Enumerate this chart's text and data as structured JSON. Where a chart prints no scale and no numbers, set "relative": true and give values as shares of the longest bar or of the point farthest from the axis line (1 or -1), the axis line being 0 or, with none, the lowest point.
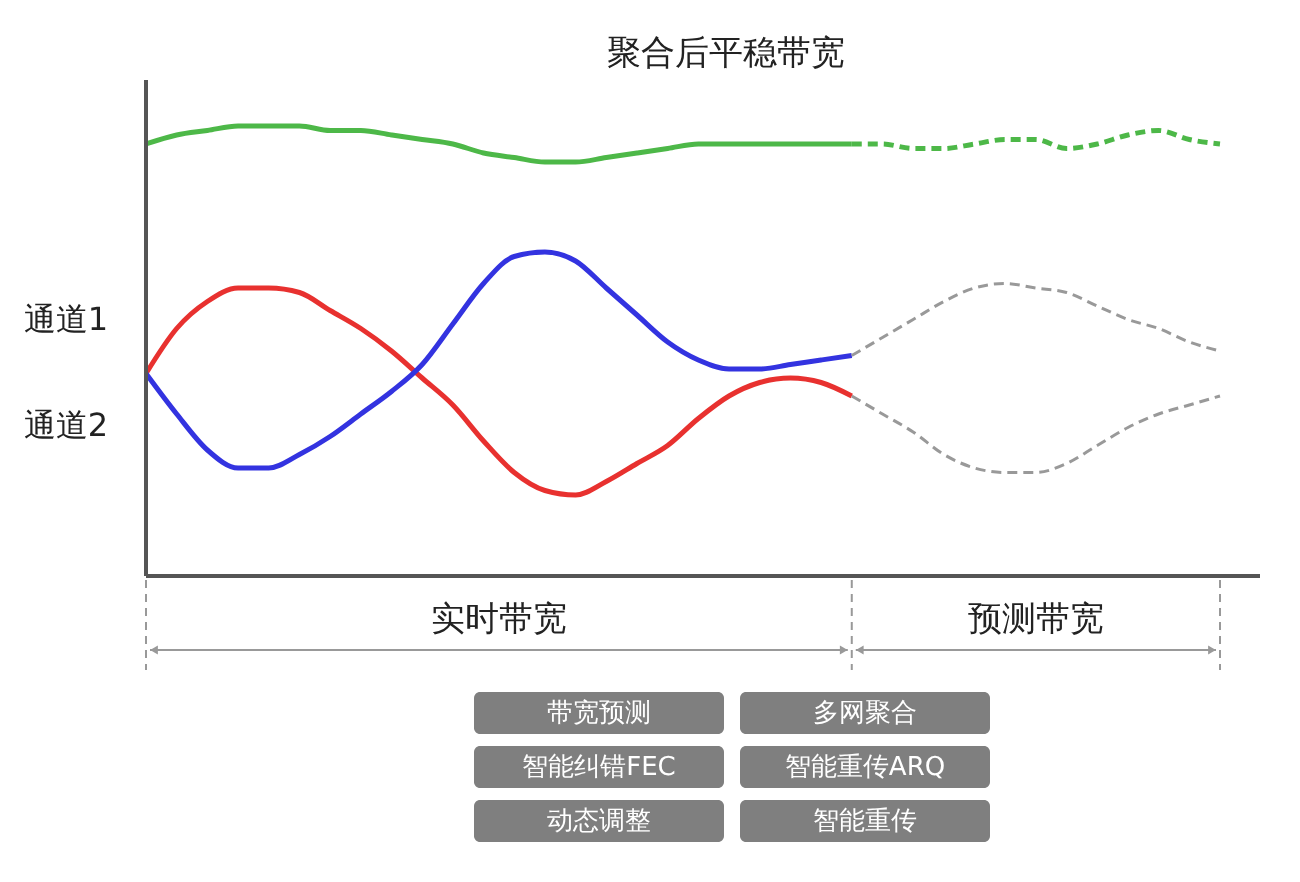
{
  "chart_data": {
    "type": "line",
    "title": "聚合后平稳带宽",
    "relative": true,
    "grid": false,
    "marker": "none",
    "categories": [
      null,
      null,
      null,
      null,
      null,
      null,
      null,
      null,
      null,
      null,
      null,
      null,
      null,
      null,
      null,
      null,
      null,
      null,
      null,
      null,
      null,
      null,
      null,
      null,
      null,
      null,
      null,
      null,
      null,
      null,
      null,
      null,
      null,
      null,
      null,
      null
    ],
    "series": [
      {
        "color": "#4db848",
        "line_style": "solid",
        "values": [
          0.96,
          0.98,
          0.99,
          1.0,
          1.0,
          1.0,
          0.99,
          0.99,
          0.98,
          0.97,
          0.96,
          0.94,
          0.93,
          0.92,
          0.92,
          0.93,
          0.94,
          0.95,
          0.96,
          0.96,
          0.96,
          0.96,
          0.96,
          0.96,
          null,
          null,
          null,
          null,
          null,
          null,
          null,
          null,
          null,
          null,
          null,
          null
        ]
      },
      {
        "color": "#4db848",
        "line_style": "dashed",
        "values": [
          null,
          null,
          null,
          null,
          null,
          null,
          null,
          null,
          null,
          null,
          null,
          null,
          null,
          null,
          null,
          null,
          null,
          null,
          null,
          null,
          null,
          null,
          null,
          0.96,
          0.96,
          0.95,
          0.95,
          0.96,
          0.97,
          0.97,
          0.95,
          0.96,
          0.98,
          0.99,
          0.97,
          0.96
        ]
      },
      {
        "color": "#e8312f",
        "line_style": "solid",
        "values": [
          0.45,
          0.55,
          0.61,
          0.64,
          0.64,
          0.63,
          0.59,
          0.55,
          0.5,
          0.44,
          0.38,
          0.3,
          0.23,
          0.19,
          0.18,
          0.21,
          0.25,
          0.29,
          0.35,
          0.4,
          0.43,
          0.44,
          0.43,
          0.4,
          null,
          null,
          null,
          null,
          null,
          null,
          null,
          null,
          null,
          null,
          null,
          null
        ]
      },
      {
        "color": "#3333e0",
        "line_style": "solid",
        "values": [
          0.45,
          0.36,
          0.28,
          0.24,
          0.24,
          0.27,
          0.31,
          0.36,
          0.41,
          0.47,
          0.56,
          0.65,
          0.71,
          0.72,
          0.7,
          0.64,
          0.58,
          0.52,
          0.48,
          0.46,
          0.46,
          0.47,
          0.48,
          0.49,
          null,
          null,
          null,
          null,
          null,
          null,
          null,
          null,
          null,
          null,
          null,
          null
        ]
      },
      {
        "color": "#999999",
        "line_style": "dashed",
        "values": [
          null,
          null,
          null,
          null,
          null,
          null,
          null,
          null,
          null,
          null,
          null,
          null,
          null,
          null,
          null,
          null,
          null,
          null,
          null,
          null,
          null,
          null,
          null,
          0.49,
          0.53,
          0.57,
          0.61,
          0.64,
          0.65,
          0.64,
          0.63,
          0.6,
          0.57,
          0.55,
          0.52,
          0.5
        ]
      },
      {
        "color": "#999999",
        "line_style": "dashed",
        "values": [
          null,
          null,
          null,
          null,
          null,
          null,
          null,
          null,
          null,
          null,
          null,
          null,
          null,
          null,
          null,
          null,
          null,
          null,
          null,
          null,
          null,
          null,
          null,
          0.4,
          0.36,
          0.32,
          0.27,
          0.24,
          0.23,
          0.23,
          0.25,
          0.29,
          0.33,
          0.36,
          0.38,
          0.4
        ]
      }
    ],
    "annotations": [
      "通道1",
      "通道2",
      "实时带宽",
      "预测带宽",
      "带宽预测",
      "多网聚合",
      "智能纠错FEC",
      "智能重传ARQ",
      "动态调整",
      "智能重传"
    ]
  }
}
